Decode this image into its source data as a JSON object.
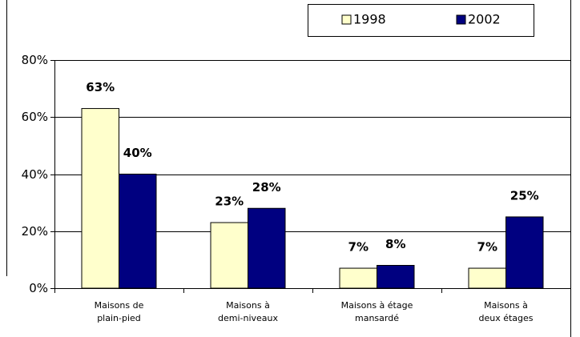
{
  "chart_data": {
    "type": "bar",
    "categories": [
      "Maisons de\nplain-pied",
      "Maisons à\ndemi-niveaux",
      "Maisons à étage\nmansardé",
      "Maisons à\ndeux étages"
    ],
    "series": [
      {
        "name": "1998",
        "color": "#ffffcc",
        "values": [
          63,
          23,
          7,
          7
        ],
        "value_labels": [
          "63%",
          "23%",
          "7%",
          "7%"
        ]
      },
      {
        "name": "2002",
        "color": "#000080",
        "values": [
          40,
          28,
          8,
          25
        ],
        "value_labels": [
          "40%",
          "28%",
          "8%",
          "25%"
        ]
      }
    ],
    "ylim": [
      0,
      80
    ],
    "yticks": [
      {
        "value": 0,
        "label": "0%"
      },
      {
        "value": 20,
        "label": "20%"
      },
      {
        "value": 40,
        "label": "40%"
      },
      {
        "value": 60,
        "label": "60%"
      },
      {
        "value": 80,
        "label": "80%"
      }
    ],
    "grid": true,
    "legend": "top-right"
  }
}
